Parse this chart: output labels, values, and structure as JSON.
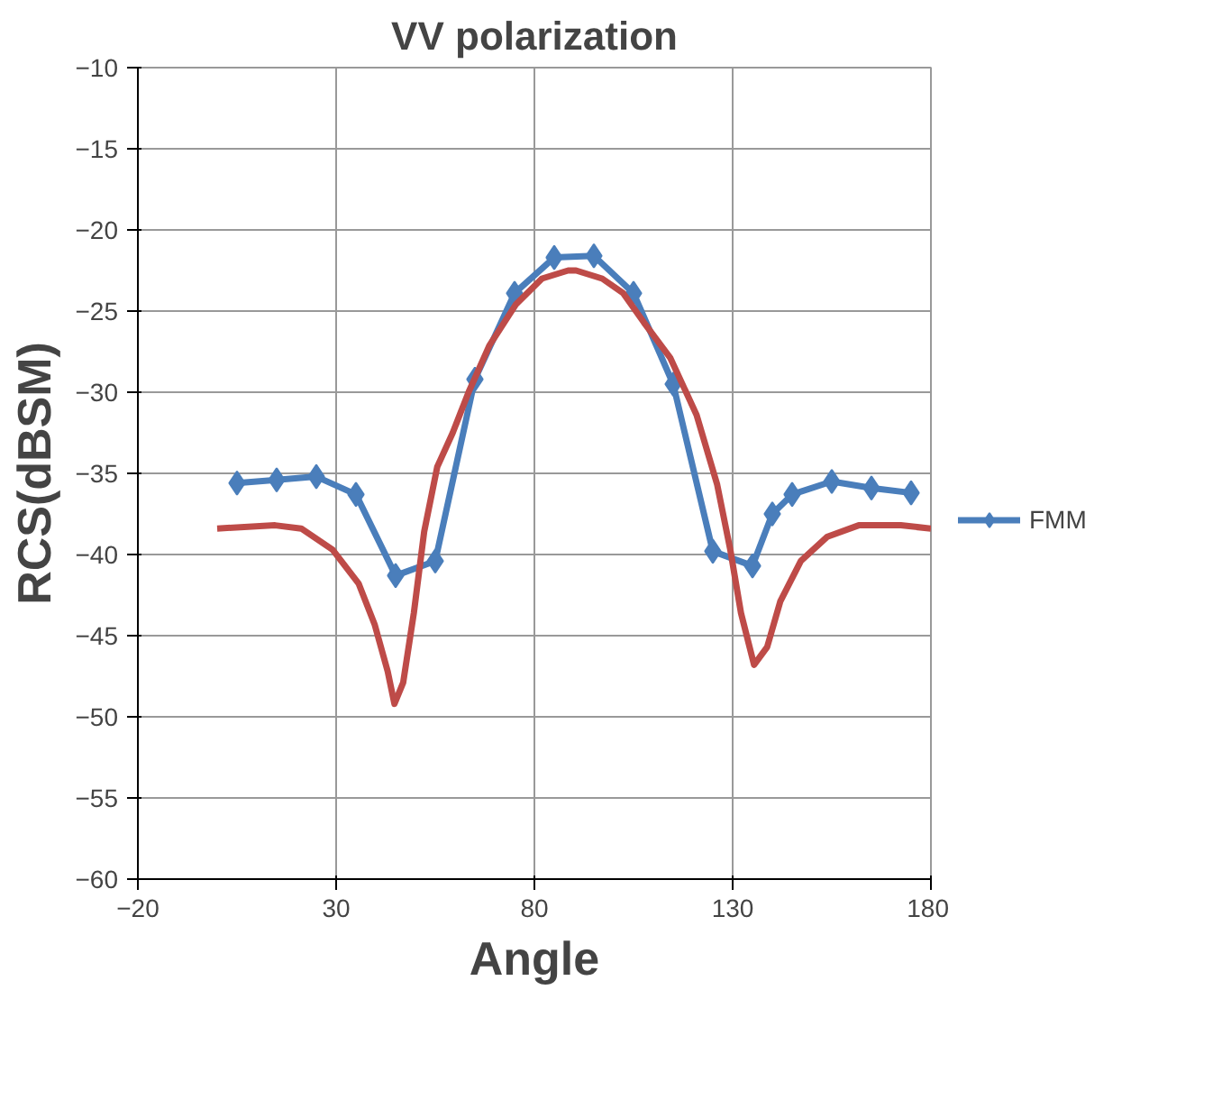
{
  "chart_data": {
    "type": "line",
    "title": "VV polarization",
    "xlabel": "Angle",
    "ylabel": "RCS(dBSM)",
    "xlim": [
      -20,
      180
    ],
    "xticks": [
      -20,
      30,
      80,
      130,
      180
    ],
    "ylim": [
      -60,
      -10
    ],
    "yticks": [
      -60,
      -55,
      -50,
      -45,
      -40,
      -35,
      -30,
      -25,
      -20,
      -15,
      -10
    ],
    "grid": true,
    "legend": "right",
    "series": [
      {
        "name": "FMM",
        "color": "#4a7ebb",
        "marker": "diamond",
        "x": [
          5,
          15,
          25,
          35,
          45,
          55,
          65,
          75,
          85,
          95,
          105,
          115,
          125,
          135,
          140,
          145,
          155,
          165,
          175
        ],
        "values": [
          -35.6,
          -35.4,
          -35.2,
          -36.3,
          -41.3,
          -40.4,
          -29.2,
          -23.9,
          -21.7,
          -21.6,
          -23.9,
          -29.5,
          -39.8,
          -40.7,
          -37.5,
          -36.3,
          -35.5,
          -35.9,
          -36.2
        ]
      },
      {
        "color": "#be4b48",
        "marker": "none",
        "x": [
          0,
          14.6,
          21.2,
          29.1,
          35.7,
          39.7,
          43,
          44.7,
          46.9,
          49.6,
          52.2,
          55.5,
          59.4,
          63.4,
          68.7,
          75.3,
          81.9,
          88.5,
          90.5,
          97.1,
          102.4,
          107.6,
          114.3,
          120.9,
          126.1,
          129.4,
          132.1,
          135.4,
          138.7,
          142,
          147.2,
          153.9,
          161.8,
          172.4,
          180
        ],
        "values": [
          -38.4,
          -38.2,
          -38.4,
          -39.7,
          -41.8,
          -44.3,
          -47.2,
          -49.2,
          -47.9,
          -43.6,
          -38.6,
          -34.6,
          -32.5,
          -30.0,
          -27.1,
          -24.6,
          -23.0,
          -22.5,
          -22.5,
          -23.0,
          -23.9,
          -25.7,
          -27.9,
          -31.4,
          -35.7,
          -39.7,
          -43.6,
          -46.8,
          -45.7,
          -42.9,
          -40.4,
          -38.9,
          -38.2,
          -38.2,
          -38.4
        ]
      }
    ]
  }
}
